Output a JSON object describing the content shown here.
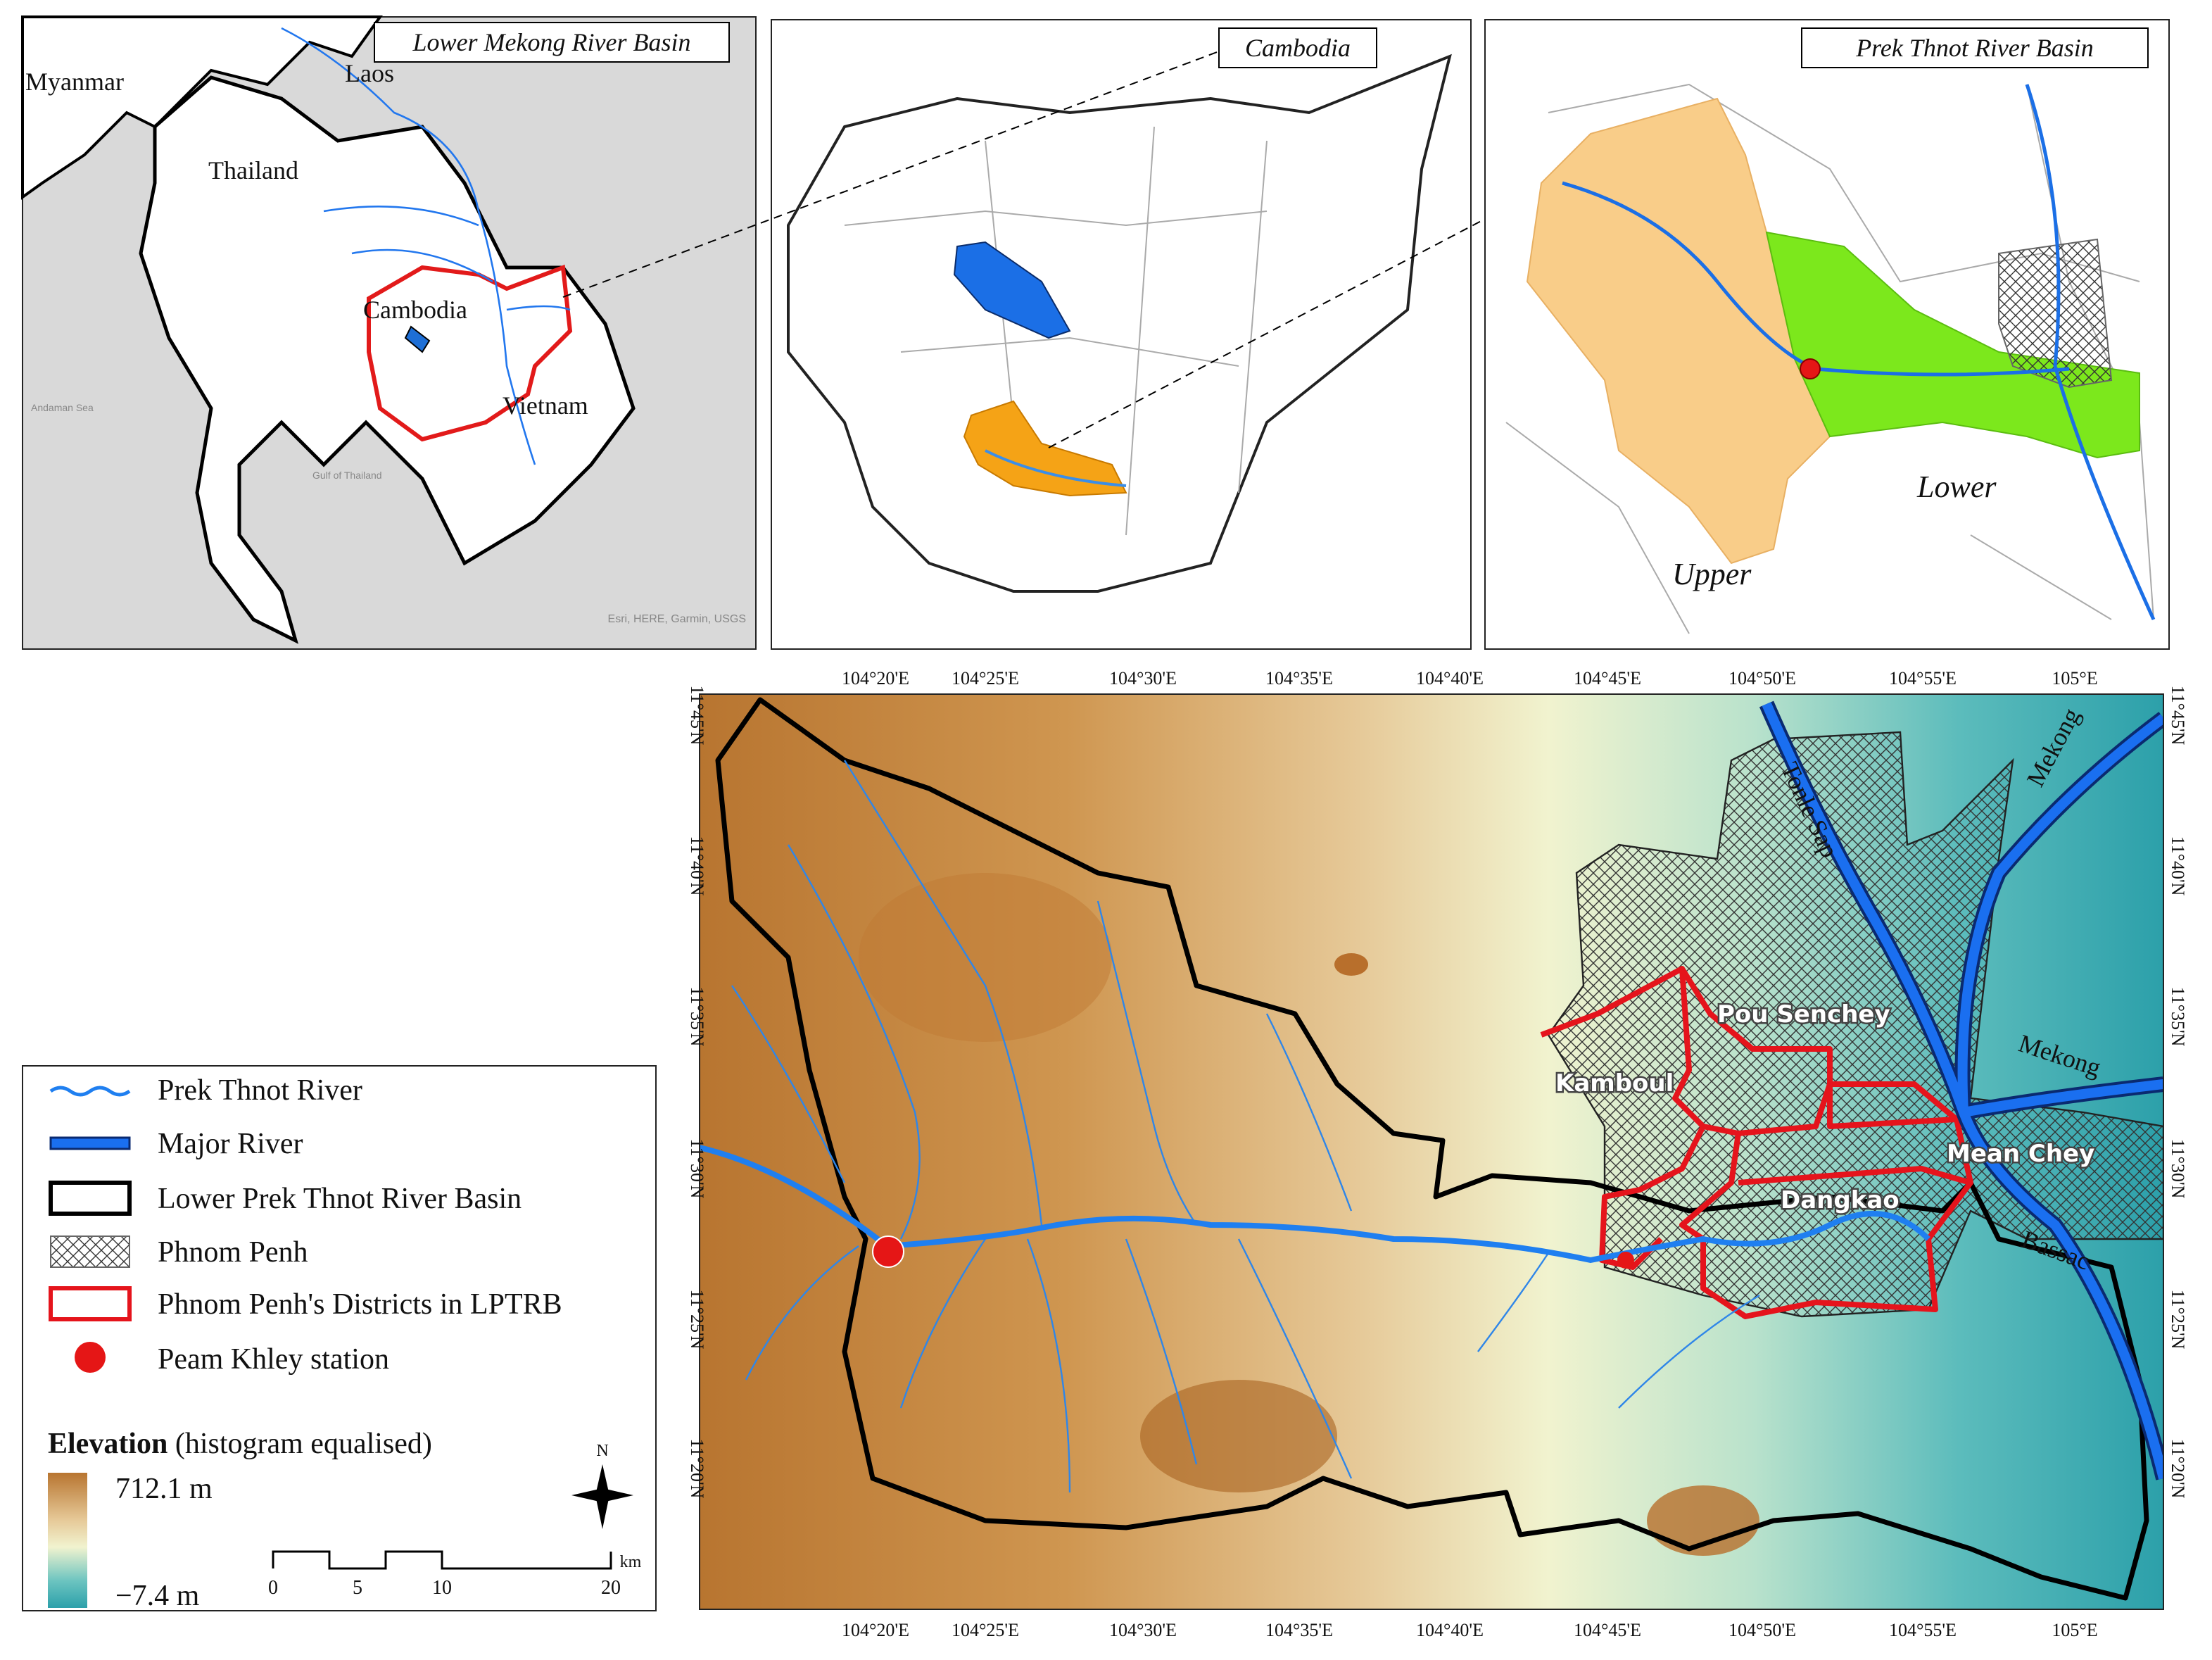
{
  "panel_1": {
    "title": "Lower Mekong River Basin",
    "labels": [
      "Myanmar",
      "Laos",
      "Thailand",
      "Cambodia",
      "Vietnam",
      "Andaman Sea",
      "Gulf of Thailand",
      "Esri, HERE, Garmin, USGS"
    ]
  },
  "panel_2": {
    "title": "Cambodia"
  },
  "panel_3": {
    "title": "Prek Thnot River Basin",
    "labels": [
      "Upper",
      "Lower"
    ]
  },
  "main_map": {
    "x_ticks": [
      "104°20'E",
      "104°25'E",
      "104°30'E",
      "104°35'E",
      "104°40'E",
      "104°45'E",
      "104°50'E",
      "104°55'E",
      "105°E"
    ],
    "y_ticks": [
      "11°45'N",
      "11°40'N",
      "11°35'N",
      "11°30'N",
      "11°25'N",
      "11°20'N"
    ],
    "labels": [
      "Tonle Sap",
      "Mekong",
      "Mekong",
      "Bassac",
      "Pou Senchey",
      "Kamboul",
      "Dangkao",
      "Mean Chey"
    ]
  },
  "legend": {
    "items": [
      "Prek Thnot River",
      "Major River",
      "Lower Prek Thnot River Basin",
      "Phnom Penh",
      "Phnom Penh's Districts in LPTRB",
      "Peam Khley station"
    ],
    "elevation": {
      "title": "Elevation",
      "subtitle": "(histogram equalised)",
      "max": "712.1 m",
      "min": "−7.4 m"
    },
    "north": "N",
    "scale": {
      "labels": [
        "0",
        "5",
        "10",
        "20"
      ],
      "unit": "km"
    }
  }
}
